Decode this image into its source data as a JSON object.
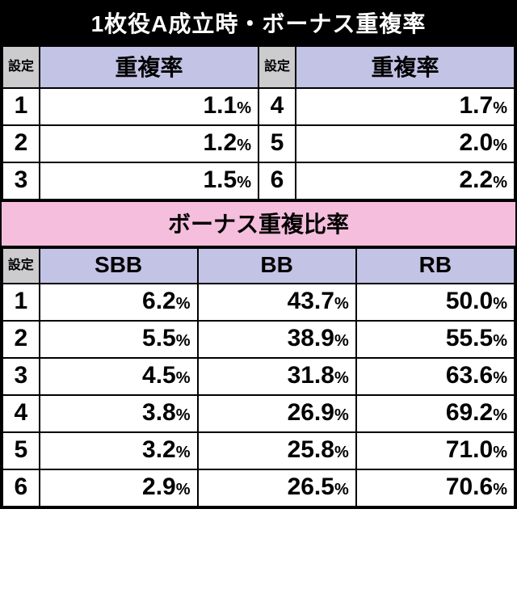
{
  "colors": {
    "title_bg": "#000000",
    "title_fg": "#ffffff",
    "lavender": "#c3c3e6",
    "gray": "#ccccce",
    "pink": "#f5bedd",
    "border": "#000000"
  },
  "labels": {
    "title_main": "1枚役A成立時・ボーナス重複率",
    "title_sub": "ボーナス重複比率",
    "settei": "設定",
    "overlap_rate": "重複率",
    "sbb": "SBB",
    "bb": "BB",
    "rb": "RB",
    "pct": "%"
  },
  "overlap_rate_table": {
    "left": [
      {
        "setting": "1",
        "value": "1.1"
      },
      {
        "setting": "2",
        "value": "1.2"
      },
      {
        "setting": "3",
        "value": "1.5"
      }
    ],
    "right": [
      {
        "setting": "4",
        "value": "1.7"
      },
      {
        "setting": "5",
        "value": "2.0"
      },
      {
        "setting": "6",
        "value": "2.2"
      }
    ]
  },
  "bonus_ratio_table": {
    "rows": [
      {
        "setting": "1",
        "sbb": "6.2",
        "bb": "43.7",
        "rb": "50.0"
      },
      {
        "setting": "2",
        "sbb": "5.5",
        "bb": "38.9",
        "rb": "55.5"
      },
      {
        "setting": "3",
        "sbb": "4.5",
        "bb": "31.8",
        "rb": "63.6"
      },
      {
        "setting": "4",
        "sbb": "3.8",
        "bb": "26.9",
        "rb": "69.2"
      },
      {
        "setting": "5",
        "sbb": "3.2",
        "bb": "25.8",
        "rb": "71.0"
      },
      {
        "setting": "6",
        "sbb": "2.9",
        "bb": "26.5",
        "rb": "70.6"
      }
    ]
  }
}
